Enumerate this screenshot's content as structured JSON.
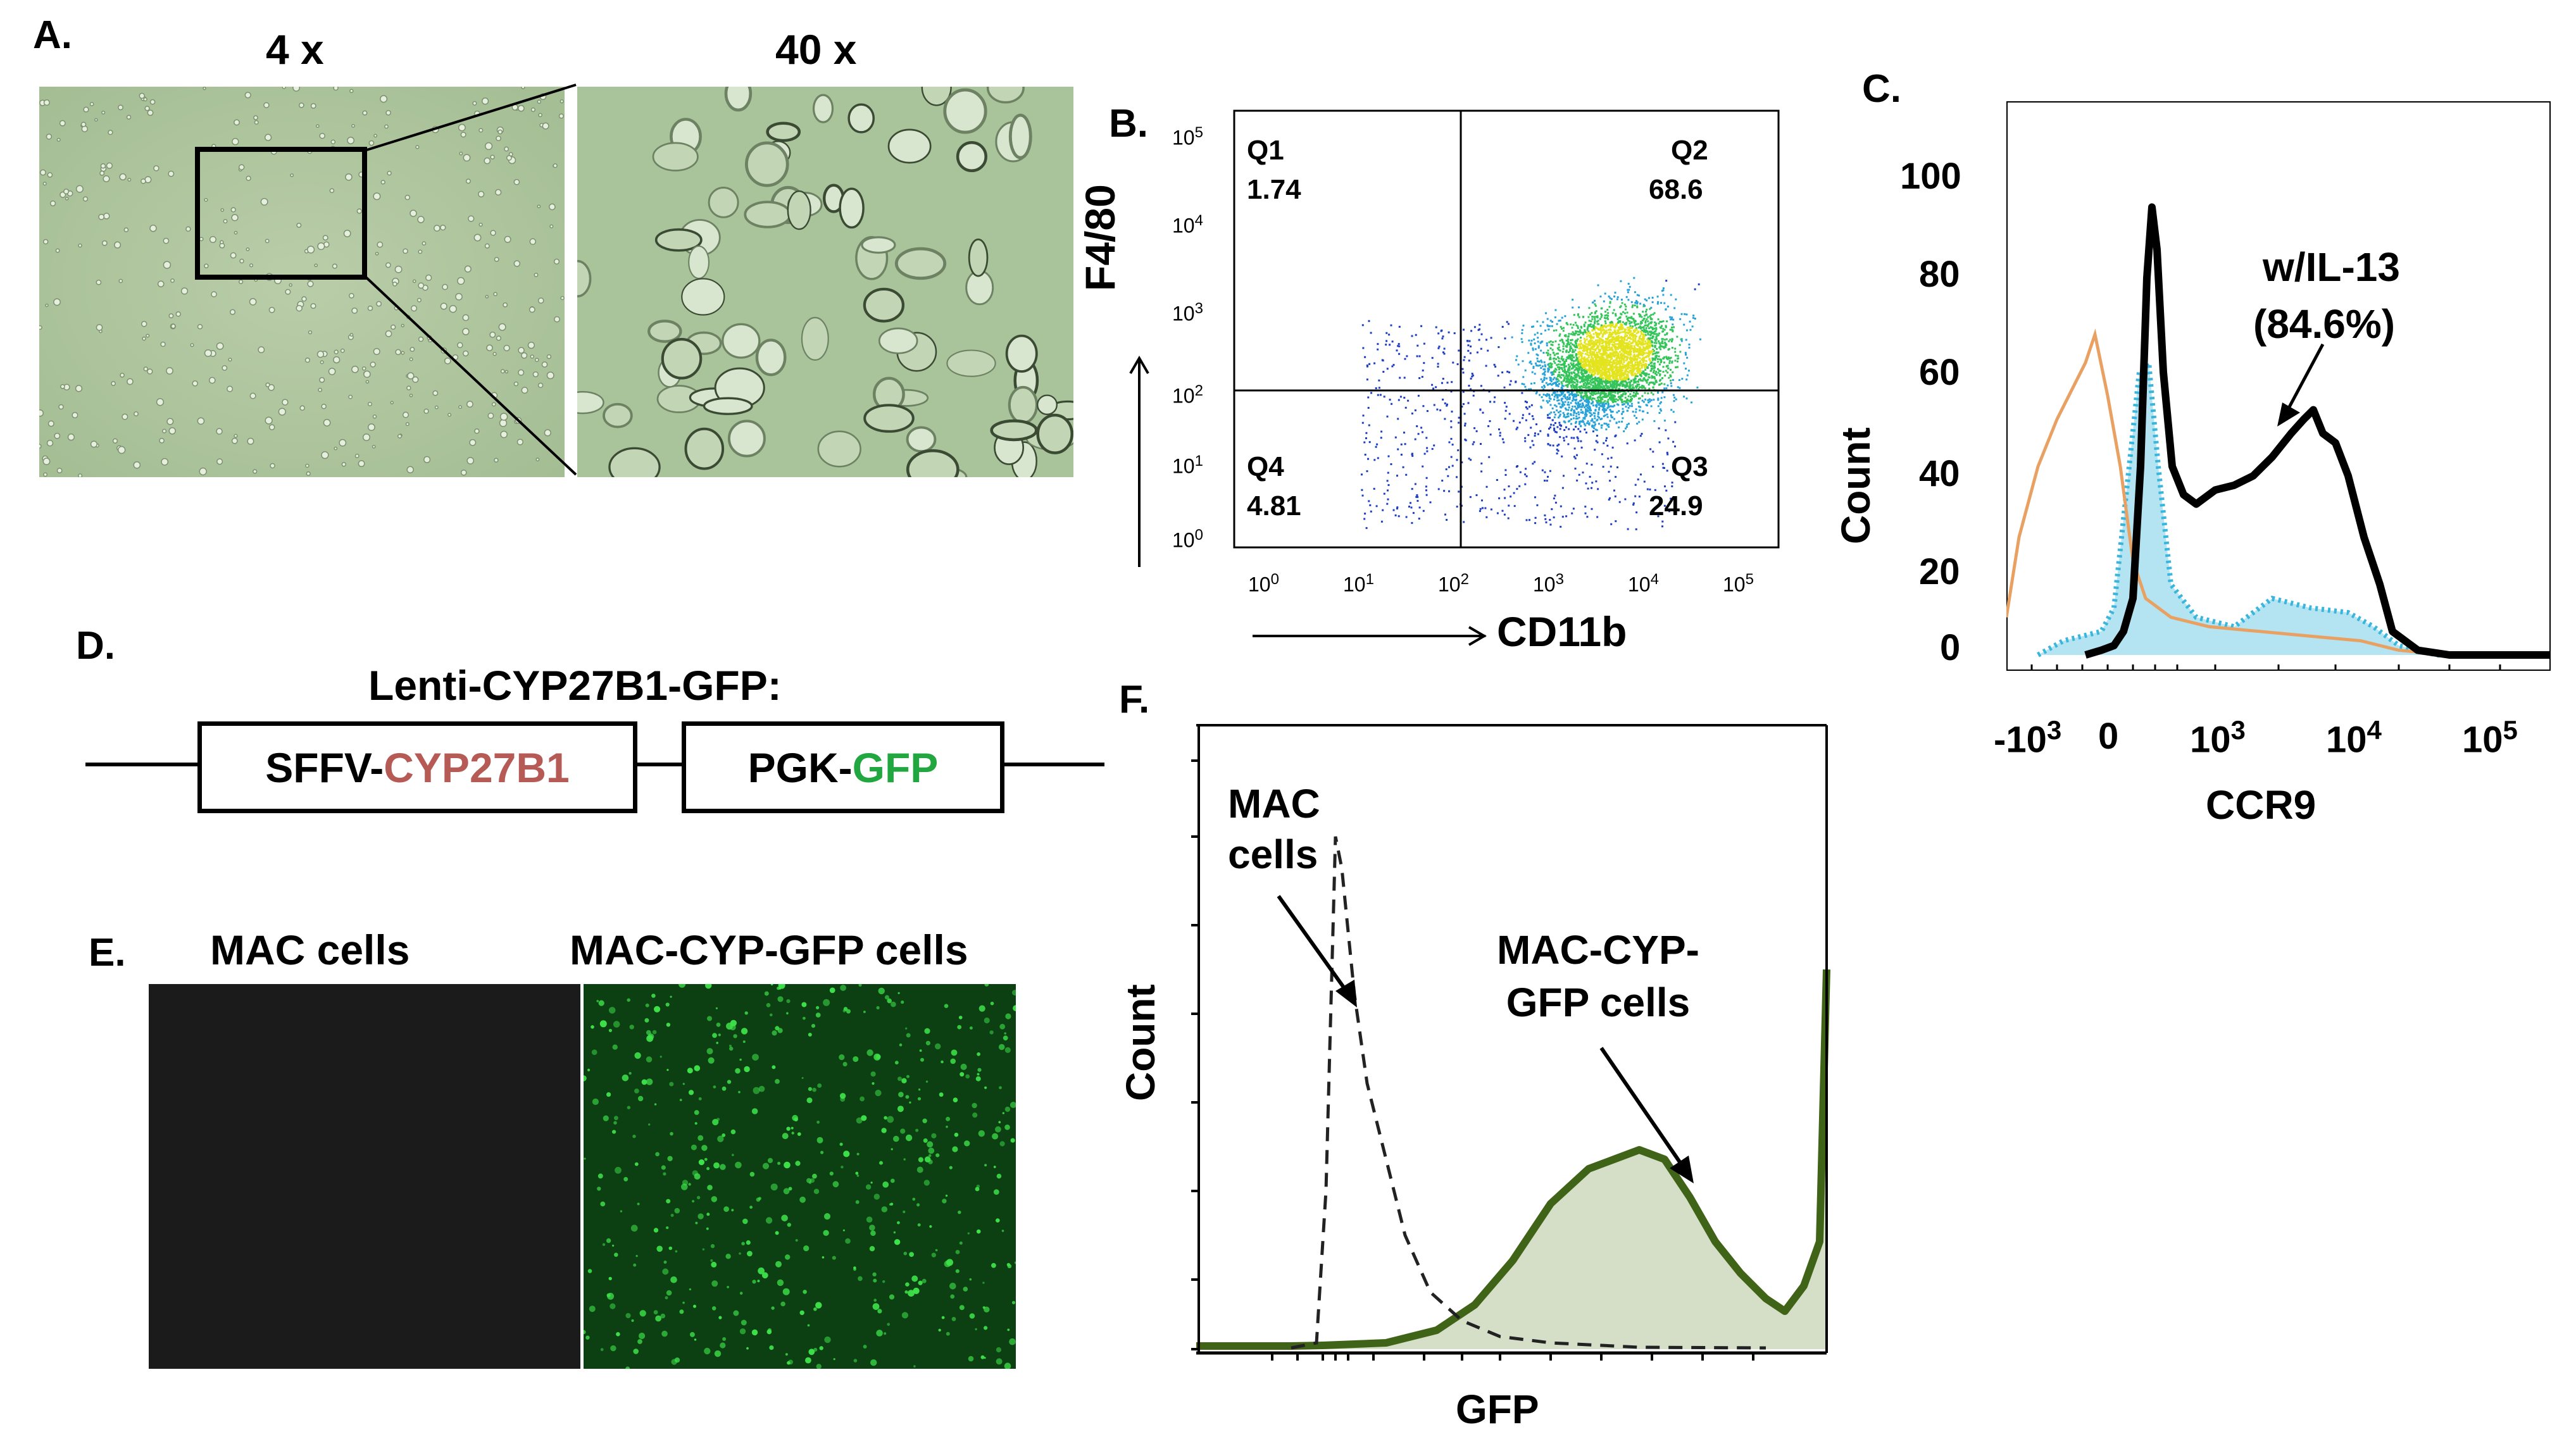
{
  "panel_a": {
    "label": "A.",
    "mag_low": "4 x",
    "mag_high": "40 x"
  },
  "panel_b": {
    "label": "B.",
    "quadrants": [
      {
        "name": "Q1",
        "value": "1.74"
      },
      {
        "name": "Q2",
        "value": "68.6"
      },
      {
        "name": "Q3",
        "value": "24.9"
      },
      {
        "name": "Q4",
        "value": "4.81"
      }
    ],
    "xlabel": "CD11b",
    "ylabel": "F4/80",
    "x_ticks": [
      "0",
      "1",
      "2",
      "3",
      "4",
      "5"
    ],
    "y_ticks": [
      "5",
      "4",
      "3",
      "2",
      "1",
      "0"
    ]
  },
  "panel_c": {
    "label": "C.",
    "ylabel": "Count",
    "xlabel": "CCR9",
    "y_ticks": [
      "100",
      "80",
      "60",
      "40",
      "20",
      "0"
    ],
    "annotation_line1": "w/IL-13",
    "annotation_line2": "(84.6%)",
    "x_ticks": [
      {
        "base": "-10",
        "exp": "3"
      },
      {
        "base": "0",
        "exp": ""
      },
      {
        "base": "10",
        "exp": "3"
      },
      {
        "base": "10",
        "exp": "4"
      },
      {
        "base": "10",
        "exp": "5"
      }
    ]
  },
  "panel_d": {
    "label": "D.",
    "construct_title": "Lenti-CYP27B1-GFP:",
    "box1_prefix": "SFFV-",
    "box1_gene": "CYP27B1",
    "box2_prefix": "PGK-",
    "box2_gene": "GFP",
    "colors": {
      "cyp": "#b55a55",
      "gfp": "#22a640"
    }
  },
  "panel_e": {
    "label": "E.",
    "left_title": "MAC cells",
    "right_title": "MAC-CYP-GFP cells"
  },
  "panel_f": {
    "label": "F.",
    "ylabel": "Count",
    "xlabel": "GFP",
    "annotation_mac_line1": "MAC",
    "annotation_mac_line2": "cells",
    "annotation_gfp_line1": "MAC-CYP-",
    "annotation_gfp_line2": "GFP cells"
  }
}
